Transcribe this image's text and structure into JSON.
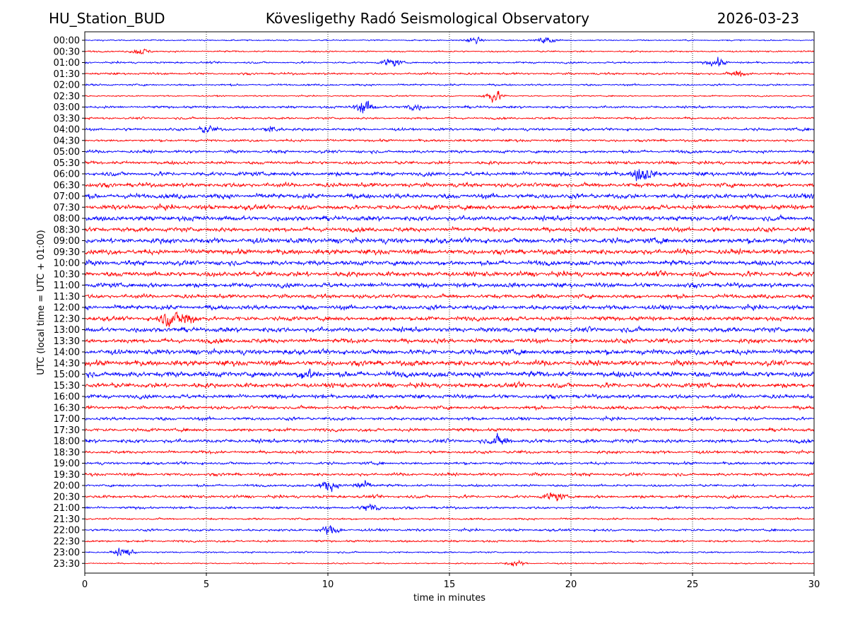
{
  "header": {
    "station": "HU_Station_BUD",
    "observatory": "Köveslige­thy Radó Seismological Observatory",
    "date": "2026-03-23"
  },
  "chart_data": {
    "type": "line",
    "title": "Köveslige­thy Radó Seismological Observatory",
    "xlabel": "time in minutes",
    "ylabel": "UTC (local time = UTC + 01:00)",
    "xlim": [
      0,
      30
    ],
    "xticks": [
      0,
      5,
      10,
      15,
      20,
      25,
      30
    ],
    "grid": "vertical dotted at x ticks",
    "colors": [
      "#0000ff",
      "#ff0000"
    ],
    "row_labels": [
      "00:00",
      "00:30",
      "01:00",
      "01:30",
      "02:00",
      "02:30",
      "03:00",
      "03:30",
      "04:00",
      "04:30",
      "05:00",
      "05:30",
      "06:00",
      "06:30",
      "07:00",
      "07:30",
      "08:00",
      "08:30",
      "09:00",
      "09:30",
      "10:00",
      "10:30",
      "11:00",
      "11:30",
      "12:00",
      "12:30",
      "13:00",
      "13:30",
      "14:00",
      "14:30",
      "15:00",
      "15:30",
      "16:00",
      "16:30",
      "17:00",
      "17:30",
      "18:00",
      "18:30",
      "19:00",
      "19:30",
      "20:00",
      "20:30",
      "21:00",
      "21:30",
      "22:00",
      "22:30",
      "23:00",
      "23:30"
    ],
    "noise_level": [
      0.1,
      0.12,
      0.14,
      0.16,
      0.14,
      0.1,
      0.18,
      0.16,
      0.2,
      0.18,
      0.22,
      0.24,
      0.3,
      0.32,
      0.36,
      0.36,
      0.36,
      0.34,
      0.4,
      0.38,
      0.36,
      0.38,
      0.34,
      0.3,
      0.34,
      0.32,
      0.36,
      0.34,
      0.38,
      0.4,
      0.42,
      0.36,
      0.3,
      0.26,
      0.24,
      0.24,
      0.28,
      0.22,
      0.2,
      0.22,
      0.18,
      0.22,
      0.18,
      0.14,
      0.18,
      0.16,
      0.12,
      0.1
    ],
    "bursts": [
      {
        "row": 0,
        "t": 16.0,
        "amp": 0.5
      },
      {
        "row": 0,
        "t": 19.0,
        "amp": 0.6
      },
      {
        "row": 1,
        "t": 2.3,
        "amp": 0.5
      },
      {
        "row": 2,
        "t": 12.6,
        "amp": 0.7
      },
      {
        "row": 2,
        "t": 26.0,
        "amp": 0.7
      },
      {
        "row": 3,
        "t": 26.9,
        "amp": 0.6
      },
      {
        "row": 5,
        "t": 16.8,
        "amp": 1.1
      },
      {
        "row": 6,
        "t": 11.5,
        "amp": 1.1
      },
      {
        "row": 6,
        "t": 13.5,
        "amp": 0.6
      },
      {
        "row": 8,
        "t": 5.0,
        "amp": 0.6
      },
      {
        "row": 8,
        "t": 7.7,
        "amp": 0.6
      },
      {
        "row": 12,
        "t": 22.9,
        "amp": 1.4
      },
      {
        "row": 25,
        "t": 3.5,
        "amp": 1.3
      },
      {
        "row": 25,
        "t": 4.2,
        "amp": 1.2
      },
      {
        "row": 30,
        "t": 9.2,
        "amp": 0.8
      },
      {
        "row": 36,
        "t": 17.1,
        "amp": 0.9
      },
      {
        "row": 40,
        "t": 10.0,
        "amp": 0.9
      },
      {
        "row": 40,
        "t": 11.4,
        "amp": 0.8
      },
      {
        "row": 41,
        "t": 19.3,
        "amp": 0.7
      },
      {
        "row": 42,
        "t": 11.8,
        "amp": 0.8
      },
      {
        "row": 44,
        "t": 10.1,
        "amp": 0.8
      },
      {
        "row": 46,
        "t": 1.6,
        "amp": 0.8
      },
      {
        "row": 47,
        "t": 17.7,
        "amp": 0.5
      }
    ]
  }
}
